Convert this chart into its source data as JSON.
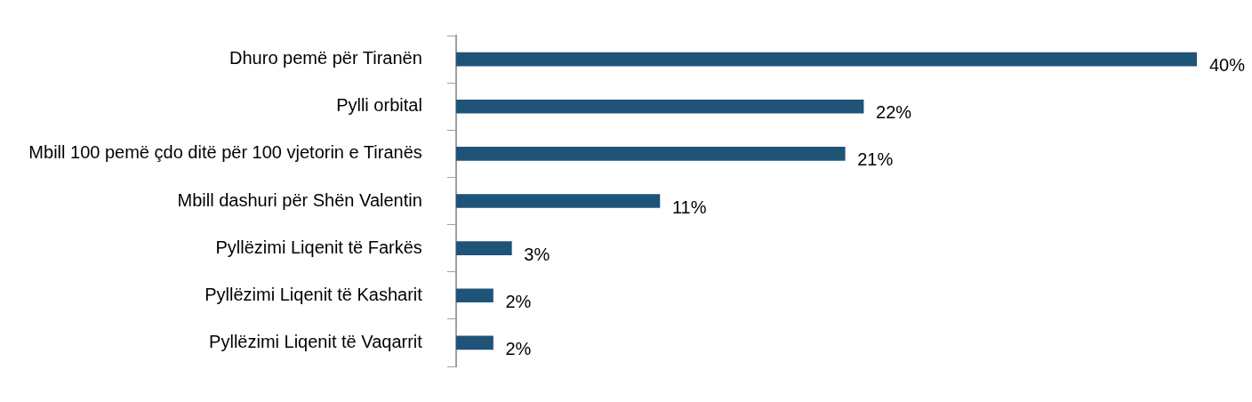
{
  "chart_data": {
    "type": "bar",
    "orientation": "horizontal",
    "categories": [
      "Dhuro pemë për Tiranën",
      "Pylli orbital",
      "Mbill 100 pemë çdo ditë për 100 vjetorin e Tiranës",
      "Mbill dashuri për Shën Valentin",
      "Pyllëzimi Liqenit të Farkës",
      "Pyllëzimi Liqenit të Kasharit",
      "Pyllëzimi Liqenit të Vaqarrit"
    ],
    "values": [
      40,
      22,
      21,
      11,
      3,
      2,
      2
    ],
    "value_labels": [
      "40%",
      "22%",
      "21%",
      "11%",
      "3%",
      "2%",
      "2%"
    ],
    "color": "#1f5378",
    "xlim": [
      0,
      40
    ],
    "tick_labels": "y",
    "legend": false
  }
}
